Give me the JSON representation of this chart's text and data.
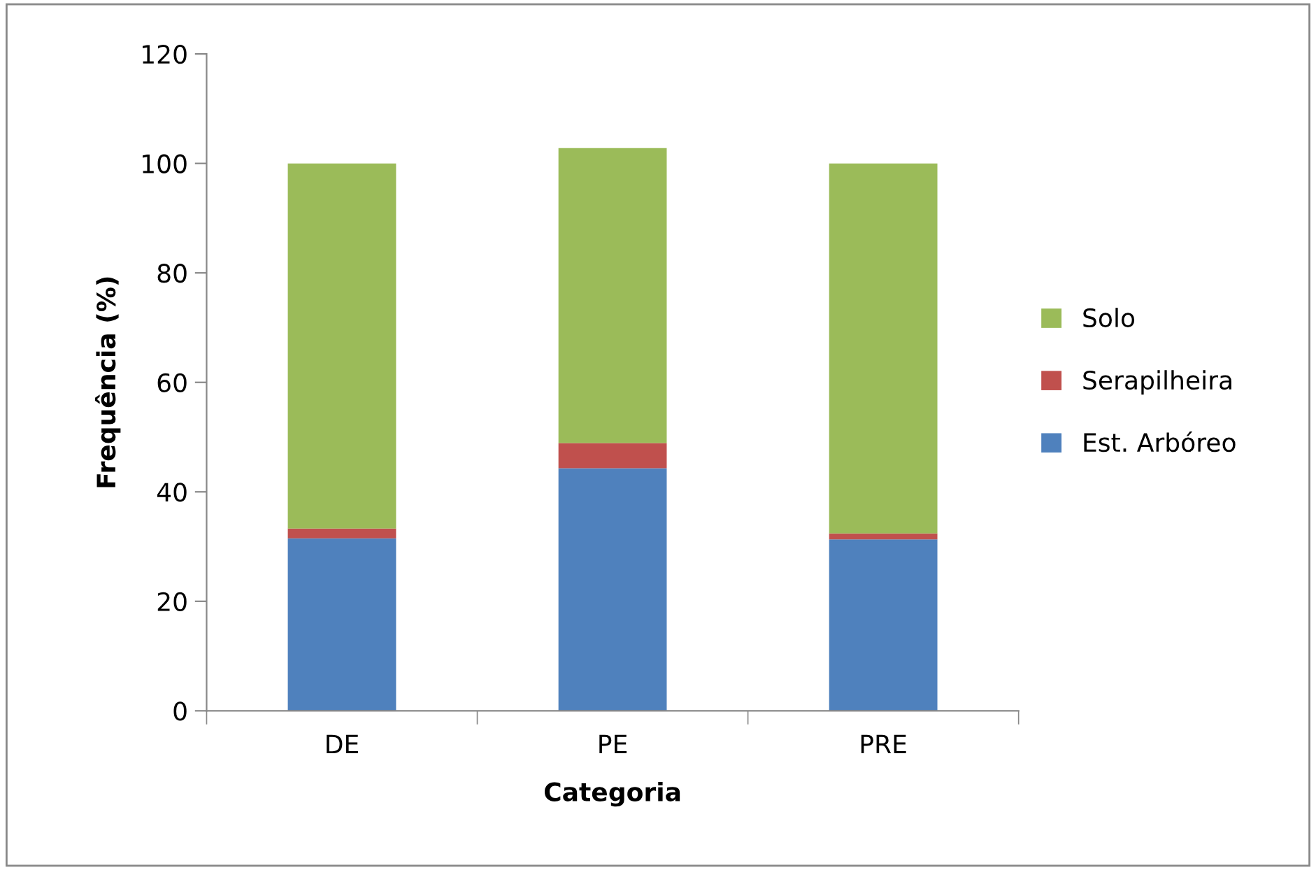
{
  "chart_data": {
    "type": "bar",
    "stacked": true,
    "xlabel": "Categoria",
    "ylabel": "Frequência (%)",
    "categories": [
      "DE",
      "PE",
      "PRE"
    ],
    "series": [
      {
        "name": "Est. Arbóreo",
        "color": "#4f81bd",
        "values": [
          31.5,
          44.3,
          31.3
        ]
      },
      {
        "name": "Serapilheira",
        "color": "#c0504d",
        "values": [
          1.8,
          4.6,
          1.1
        ]
      },
      {
        "name": "Solo",
        "color": "#9bbb59",
        "values": [
          66.7,
          53.9,
          67.6
        ]
      }
    ],
    "ylim": [
      0,
      120
    ],
    "yticks": [
      0,
      20,
      40,
      60,
      80,
      100,
      120
    ],
    "grid": false,
    "legend": "right"
  }
}
